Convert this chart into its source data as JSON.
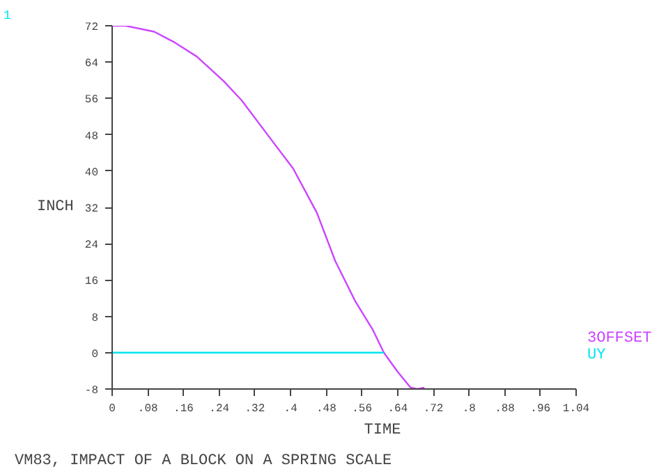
{
  "chart_data": {
    "type": "line",
    "title": "VM83, IMPACT OF A BLOCK ON A SPRING SCALE",
    "xlabel": "TIME",
    "ylabel": "INCH",
    "annotations": [
      "1"
    ],
    "xlim": [
      0,
      1.04
    ],
    "ylim": [
      -8,
      72
    ],
    "xticks": [
      0,
      {
        "value": 0.08,
        "label": ".08"
      },
      {
        "value": 0.16,
        "label": ".16"
      },
      {
        "value": 0.24,
        "label": ".24"
      },
      {
        "value": 0.32,
        "label": ".32"
      },
      {
        "value": 0.4,
        "label": ".4"
      },
      {
        "value": 0.48,
        "label": ".48"
      },
      {
        "value": 0.56,
        "label": ".56"
      },
      {
        "value": 0.64,
        "label": ".64"
      },
      {
        "value": 0.72,
        "label": ".72"
      },
      {
        "value": 0.8,
        "label": ".8"
      },
      {
        "value": 0.88,
        "label": ".88"
      },
      {
        "value": 0.96,
        "label": ".96"
      },
      1.04
    ],
    "yticks": [
      -8,
      0,
      8,
      16,
      24,
      32,
      40,
      48,
      56,
      64,
      72
    ],
    "grid": false,
    "series": [
      {
        "name": "3OFFSET",
        "color": "#cc44ff",
        "x": [
          0,
          0.03,
          0.094,
          0.137,
          0.19,
          0.25,
          0.29,
          0.356,
          0.406,
          0.459,
          0.5,
          0.544,
          0.584,
          0.609,
          0.64,
          0.669,
          0.684,
          0.7
        ],
        "values": [
          72,
          72,
          70.7,
          68.5,
          65.2,
          59.8,
          55.6,
          47,
          40.5,
          30.8,
          20.2,
          11.5,
          5.1,
          0,
          -4.2,
          -7.7,
          -8,
          -7.7
        ]
      },
      {
        "name": "UY",
        "color": "#00e5ee",
        "x": [
          0,
          0.609
        ],
        "values": [
          0,
          0
        ]
      }
    ]
  }
}
